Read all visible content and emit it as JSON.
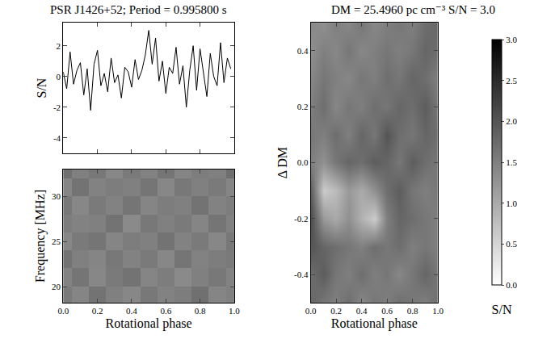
{
  "chart_data": [
    {
      "type": "line",
      "title": "PSR J1426+52; Period = 0.995800 s",
      "y_label": "S/N",
      "color": "#000000",
      "x": [
        0.0,
        0.02,
        0.04,
        0.06,
        0.08,
        0.1,
        0.12,
        0.14,
        0.16,
        0.18,
        0.2,
        0.22,
        0.24,
        0.26,
        0.28,
        0.3,
        0.32,
        0.34,
        0.36,
        0.38,
        0.4,
        0.42,
        0.44,
        0.46,
        0.48,
        0.5,
        0.52,
        0.54,
        0.56,
        0.58,
        0.6,
        0.62,
        0.64,
        0.66,
        0.68,
        0.7,
        0.72,
        0.74,
        0.76,
        0.78,
        0.8,
        0.82,
        0.84,
        0.86,
        0.88,
        0.9,
        0.92,
        0.94,
        0.96,
        0.98
      ],
      "values": [
        0.3,
        -0.8,
        1.6,
        -0.5,
        0.4,
        0.9,
        -1.2,
        0.5,
        -2.2,
        0.8,
        1.7,
        -0.6,
        0.2,
        -1.0,
        1.2,
        -0.4,
        0.1,
        -1.4,
        0.6,
        0.3,
        -0.7,
        1.1,
        -0.2,
        0.4,
        1.4,
        3.0,
        0.8,
        2.5,
        -0.3,
        1.0,
        -1.1,
        0.6,
        0.2,
        1.9,
        -0.5,
        0.7,
        -2.0,
        0.4,
        2.0,
        -0.9,
        1.8,
        0.3,
        -1.3,
        1.5,
        0.0,
        -0.6,
        2.2,
        -0.4,
        1.2,
        0.5
      ],
      "xlim": [
        0,
        1
      ],
      "xticks": [
        0,
        0.2,
        0.4,
        0.6,
        0.8,
        1
      ],
      "ylim": [
        -5,
        3.5
      ],
      "yticks": [
        -4,
        -2,
        0,
        2
      ],
      "tick_labels": "y"
    },
    {
      "type": "heatmap",
      "x_label": "Rotational phase",
      "y_label": "Frequency [MHz]",
      "x": [
        0.0,
        0.1,
        0.2,
        0.3,
        0.4,
        0.5,
        0.6,
        0.7,
        0.8,
        0.9,
        1.0
      ],
      "y": [
        19,
        21,
        23,
        25,
        27,
        29,
        31,
        33
      ],
      "z": [
        [
          0.52,
          0.48,
          0.55,
          0.5,
          0.47,
          0.53,
          0.49,
          0.51,
          0.56,
          0.48,
          0.5
        ],
        [
          0.49,
          0.54,
          0.47,
          0.52,
          0.55,
          0.48,
          0.51,
          0.46,
          0.5,
          0.53,
          0.49
        ],
        [
          0.55,
          0.5,
          0.48,
          0.53,
          0.49,
          0.52,
          0.47,
          0.54,
          0.49,
          0.51,
          0.52
        ],
        [
          0.47,
          0.52,
          0.54,
          0.48,
          0.51,
          0.5,
          0.55,
          0.49,
          0.52,
          0.47,
          0.53
        ],
        [
          0.51,
          0.49,
          0.5,
          0.55,
          0.46,
          0.53,
          0.5,
          0.52,
          0.48,
          0.54,
          0.5
        ],
        [
          0.53,
          0.47,
          0.52,
          0.49,
          0.54,
          0.48,
          0.51,
          0.5,
          0.55,
          0.49,
          0.51
        ],
        [
          0.48,
          0.55,
          0.49,
          0.51,
          0.5,
          0.54,
          0.47,
          0.53,
          0.5,
          0.52,
          0.48
        ],
        [
          0.56,
          0.5,
          0.53,
          0.47,
          0.52,
          0.49,
          0.54,
          0.48,
          0.51,
          0.5,
          0.57
        ]
      ],
      "zlim": [
        0,
        1
      ],
      "xlim": [
        0,
        1
      ],
      "xticks": [
        {
          "value": 0,
          "label": "0.0"
        },
        0.2,
        0.4,
        0.6,
        0.8,
        {
          "value": 1,
          "label": "1.0"
        }
      ],
      "ylim": [
        18.2,
        33
      ],
      "yticks": [
        20,
        25,
        30
      ]
    },
    {
      "type": "heatmap",
      "title": "DM = 25.4960 pc cm⁻³ S/N = 3.0",
      "x_label": "Rotational phase",
      "y_label": "Δ DM",
      "x": [
        0.0,
        0.1,
        0.2,
        0.3,
        0.4,
        0.5,
        0.6,
        0.7,
        0.8,
        0.9,
        1.0
      ],
      "y": [
        -0.5,
        -0.4,
        -0.3,
        -0.2,
        -0.1,
        0.0,
        0.1,
        0.2,
        0.3,
        0.4,
        0.5
      ],
      "z": [
        [
          1.8,
          1.6,
          1.5,
          1.7,
          1.4,
          1.6,
          1.5,
          1.7,
          1.6,
          1.5,
          1.7
        ],
        [
          1.7,
          1.9,
          1.6,
          1.5,
          1.7,
          1.5,
          1.6,
          1.4,
          1.6,
          1.8,
          1.6
        ],
        [
          2.0,
          1.8,
          1.7,
          1.6,
          1.5,
          1.7,
          1.6,
          1.7,
          1.5,
          1.6,
          1.5
        ],
        [
          2.1,
          1.2,
          1.0,
          1.3,
          0.9,
          0.6,
          1.5,
          1.8,
          1.7,
          1.6,
          1.5
        ],
        [
          1.9,
          0.6,
          0.8,
          1.2,
          1.0,
          1.3,
          1.7,
          1.9,
          1.6,
          1.5,
          1.6
        ],
        [
          1.5,
          1.3,
          1.6,
          1.8,
          1.7,
          1.9,
          1.8,
          1.6,
          1.9,
          1.7,
          1.6
        ],
        [
          1.6,
          1.5,
          1.7,
          1.5,
          1.8,
          1.6,
          2.0,
          1.7,
          1.6,
          1.8,
          1.7
        ],
        [
          1.5,
          1.7,
          1.4,
          1.6,
          1.5,
          1.7,
          1.6,
          1.8,
          1.7,
          1.9,
          1.6
        ],
        [
          1.4,
          1.6,
          1.5,
          1.4,
          1.6,
          1.5,
          1.7,
          1.6,
          1.8,
          1.7,
          1.5
        ],
        [
          1.3,
          1.5,
          1.4,
          1.6,
          1.4,
          1.5,
          1.6,
          1.5,
          1.6,
          1.8,
          1.7
        ],
        [
          1.4,
          1.3,
          1.5,
          1.4,
          1.6,
          1.4,
          1.5,
          1.6,
          1.5,
          1.7,
          1.8
        ]
      ],
      "xlim": [
        0,
        1
      ],
      "xticks": [
        {
          "value": 0,
          "label": "0.0"
        },
        0.2,
        0.4,
        0.6,
        0.8,
        {
          "value": 1,
          "label": "1.0"
        }
      ],
      "ylim": [
        -0.5,
        0.5
      ],
      "yticks": [
        -0.4,
        -0.2,
        {
          "value": 0,
          "label": "0.0"
        },
        0.2,
        0.4
      ],
      "colorbar": {
        "title": "S/N",
        "range": [
          0,
          3
        ],
        "ticks": [
          {
            "value": 0,
            "label": "0.0"
          },
          0.5,
          {
            "value": 1,
            "label": "1.0"
          },
          1.5,
          {
            "value": 2,
            "label": "2.0"
          },
          2.5,
          {
            "value": 3,
            "label": "3.0"
          }
        ]
      }
    }
  ]
}
